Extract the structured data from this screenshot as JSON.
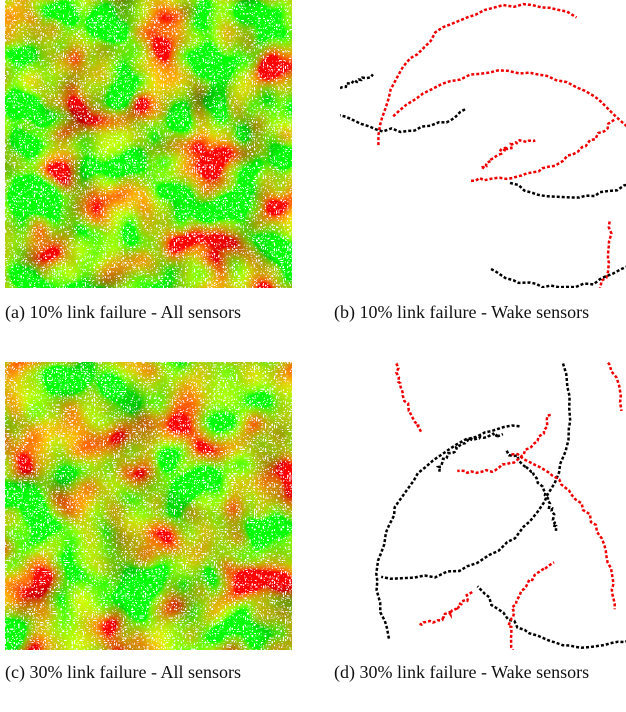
{
  "subfigures": [
    {
      "caption": "(a) 10% link failure - All sensors"
    },
    {
      "caption": "(b) 10% link failure - Wake sensors"
    },
    {
      "caption": "(c) 30% link failure - All sensors"
    },
    {
      "caption": "(d) 30% link failure - Wake sensors"
    }
  ]
}
